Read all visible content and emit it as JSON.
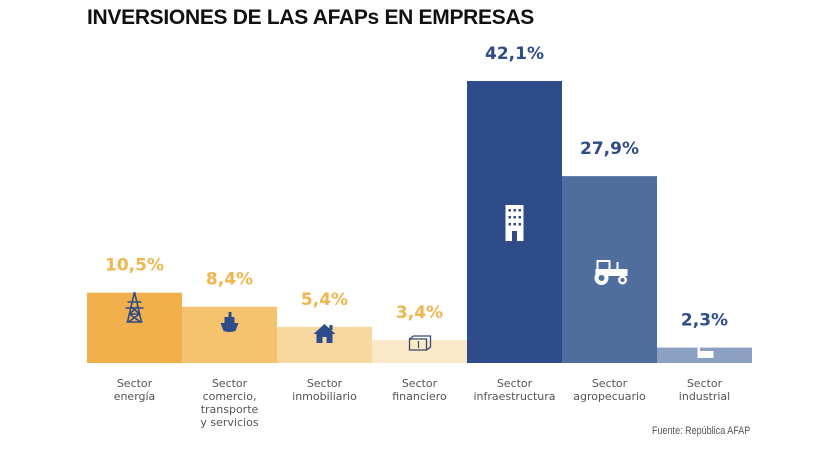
{
  "title": "INVERSIONES DE LAS AFAPs EN EMPRESAS",
  "source": "Fuente: República AFAP",
  "chart_data": {
    "type": "bar",
    "title": "INVERSIONES DE LAS AFAPs EN EMPRESAS",
    "xlabel": "",
    "ylabel": "",
    "ylim": [
      0,
      45
    ],
    "grid": false,
    "legend": "none",
    "categories": [
      [
        "Sector",
        "energía"
      ],
      [
        "Sector",
        "comercio,",
        "transporte",
        "y servicios"
      ],
      [
        "Sector",
        "inmobiliario"
      ],
      [
        "Sector",
        "financiero"
      ],
      [
        "Sector",
        "infraestructura"
      ],
      [
        "Sector",
        "agropecuario"
      ],
      [
        "Sector",
        "industrial"
      ]
    ],
    "values": [
      10.5,
      8.4,
      5.4,
      3.4,
      42.1,
      27.9,
      2.3
    ],
    "labels": [
      "10,5%",
      "8,4%",
      "5,4%",
      "3,4%",
      "42,1%",
      "27,9%",
      "2,3%"
    ],
    "icons": [
      "power-tower-icon",
      "ship-icon",
      "house-icon",
      "money-icon",
      "building-icon",
      "tractor-icon",
      "factory-icon"
    ],
    "colors": [
      "#F2B04C",
      "#F5C36E",
      "#F7D8A0",
      "#FBE8C9",
      "#2E4B8A",
      "#4F6E9E",
      "#8CA0C4"
    ],
    "label_colors": [
      "#F0B54E",
      "#F0B54E",
      "#F0B54E",
      "#F0B54E",
      "#2E4B8A",
      "#2E4B8A",
      "#2E4B8A"
    ],
    "icon_colors": [
      "#2E4B8A",
      "#2E4B8A",
      "#2E4B8A",
      "#3A4A6A",
      "#FFFFFF",
      "#FFFFFF",
      "#FFFFFF"
    ]
  }
}
